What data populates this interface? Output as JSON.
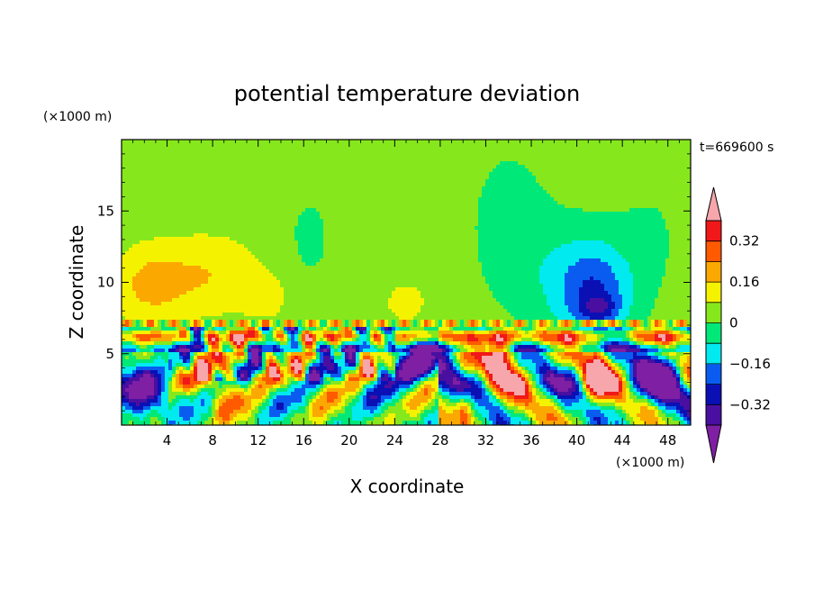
{
  "chart_data": {
    "type": "heatmap",
    "title": "potential temperature deviation",
    "xlabel": "X coordinate",
    "ylabel": "Z coordinate",
    "x_unit": "(×1000 m)",
    "y_unit": "(×1000 m)",
    "time_label": "t=669600 s",
    "xlim": [
      0,
      50
    ],
    "ylim": [
      0,
      20
    ],
    "x_ticks": [
      4,
      8,
      12,
      16,
      20,
      24,
      28,
      32,
      36,
      40,
      44,
      48
    ],
    "y_ticks": [
      5,
      10,
      15
    ],
    "grid": false,
    "colorbar": {
      "placement": "right",
      "levels": [
        -0.4,
        -0.32,
        -0.24,
        -0.16,
        -0.08,
        0,
        0.08,
        0.16,
        0.24,
        0.32,
        0.4
      ],
      "tick_labels": [
        "0.32",
        "0.16",
        "0",
        "−0.16",
        "−0.32"
      ],
      "tick_values": [
        0.32,
        0.16,
        0,
        -0.16,
        -0.32
      ],
      "colors": [
        "#7f1fa3",
        "#4a0fa0",
        "#0a10b4",
        "#0a5cf0",
        "#00eaf0",
        "#00e878",
        "#86e81c",
        "#f5f200",
        "#fba800",
        "#ff5a00",
        "#f01818",
        "#f7a6ab"
      ],
      "over_color": "#f7a6ab",
      "under_color": "#7f1fa3"
    }
  }
}
